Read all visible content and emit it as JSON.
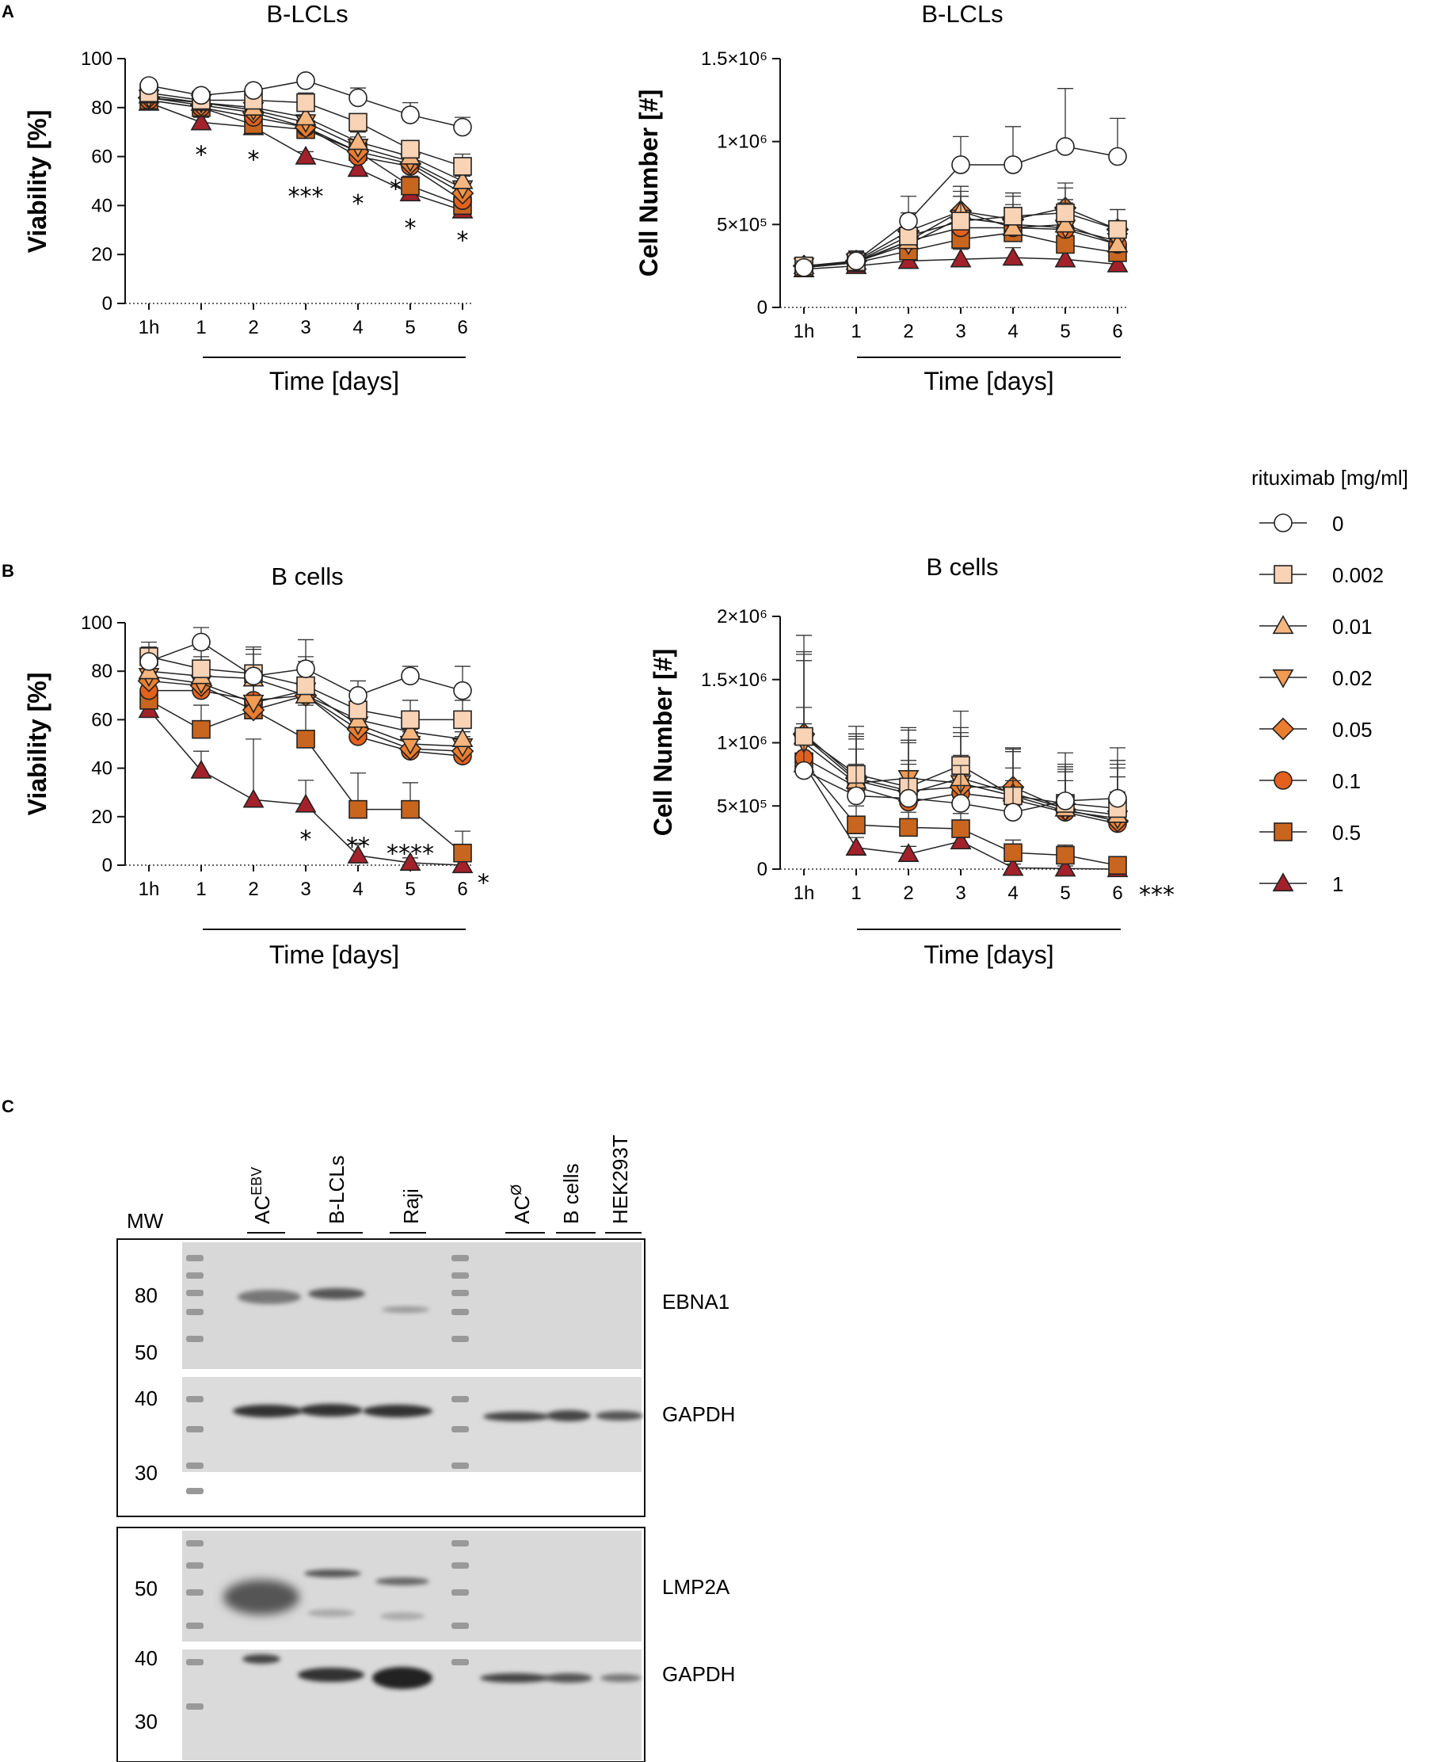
{
  "colors": {
    "0": "#ffffff",
    "0.002": "#f9d3b5",
    "0.01": "#f6b680",
    "0.02": "#f19a52",
    "0.05": "#ea7d2e",
    "0.1": "#e3611d",
    "0.5": "#c8651f",
    "1": "#a3212a"
  },
  "legend": {
    "title": "rituximab [mg/ml]",
    "entries": [
      {
        "label": "0",
        "marker": "circle",
        "key": "0"
      },
      {
        "label": "0.002",
        "marker": "square",
        "key": "0.002"
      },
      {
        "label": "0.01",
        "marker": "triangle-up",
        "key": "0.01"
      },
      {
        "label": "0.02",
        "marker": "triangle-down",
        "key": "0.02"
      },
      {
        "label": "0.05",
        "marker": "diamond",
        "key": "0.05"
      },
      {
        "label": "0.1",
        "marker": "circle",
        "key": "0.1"
      },
      {
        "label": "0.5",
        "marker": "square",
        "key": "0.5"
      },
      {
        "label": "1",
        "marker": "triangle-up",
        "key": "1"
      }
    ]
  },
  "chart_data": [
    {
      "panel": "A",
      "type": "line",
      "title": "B-LCLs",
      "ylabel": "Viability [%]",
      "xlabel": "Time [days]",
      "categories": [
        "1h",
        "1",
        "2",
        "3",
        "4",
        "5",
        "6"
      ],
      "ylim": [
        0,
        100
      ],
      "yticks": [
        {
          "v": 0,
          "label": "0"
        },
        {
          "v": 20,
          "label": "20"
        },
        {
          "v": 40,
          "label": "40"
        },
        {
          "v": 60,
          "label": "60"
        },
        {
          "v": 80,
          "label": "80"
        },
        {
          "v": 100,
          "label": "100"
        }
      ],
      "series": [
        {
          "name": "0",
          "marker": "circle",
          "key": "0",
          "values": [
            89,
            85,
            87,
            91,
            84,
            77,
            72
          ],
          "errors": [
            2,
            2,
            2,
            2,
            4,
            5,
            4
          ]
        },
        {
          "name": "0.002",
          "marker": "square",
          "key": "0.002",
          "values": [
            86,
            83,
            83,
            82,
            74,
            63,
            56
          ],
          "errors": [
            2,
            2,
            2,
            4,
            3,
            3,
            5
          ]
        },
        {
          "name": "0.01",
          "marker": "triangle-up",
          "key": "0.01",
          "values": [
            85,
            82,
            80,
            76,
            66,
            60,
            50
          ],
          "errors": [
            2,
            2,
            3,
            4,
            4,
            4,
            5
          ]
        },
        {
          "name": "0.02",
          "marker": "triangle-down",
          "key": "0.02",
          "values": [
            84,
            82,
            79,
            74,
            64,
            58,
            47
          ],
          "errors": [
            2,
            2,
            3,
            3,
            4,
            4,
            5
          ]
        },
        {
          "name": "0.05",
          "marker": "diamond",
          "key": "0.05",
          "values": [
            84,
            81,
            78,
            72,
            62,
            57,
            45
          ],
          "errors": [
            2,
            2,
            3,
            3,
            4,
            4,
            5
          ]
        },
        {
          "name": "0.1",
          "marker": "circle",
          "key": "0.1",
          "values": [
            83,
            80,
            76,
            72,
            60,
            56,
            42
          ],
          "errors": [
            2,
            2,
            3,
            3,
            4,
            4,
            5
          ]
        },
        {
          "name": "0.5",
          "marker": "square",
          "key": "0.5",
          "values": [
            83,
            80,
            73,
            71,
            62,
            48,
            40
          ],
          "errors": [
            2,
            2,
            3,
            3,
            4,
            4,
            5
          ]
        },
        {
          "name": "1",
          "marker": "triangle-up",
          "key": "1",
          "values": [
            82,
            74,
            72,
            60,
            55,
            45,
            38
          ],
          "errors": [
            2,
            2,
            3,
            2,
            4,
            4,
            3
          ]
        }
      ],
      "annotations": [
        {
          "cat": 1,
          "y": 62,
          "text": "*"
        },
        {
          "cat": 2,
          "y": 60,
          "text": "*"
        },
        {
          "cat": 3,
          "y": 45,
          "text": "***"
        },
        {
          "cat": 4,
          "y": 42,
          "text": "*"
        },
        {
          "cat": 4.72,
          "y": 48,
          "text": "*"
        },
        {
          "cat": 5,
          "y": 32,
          "text": "*"
        },
        {
          "cat": 6,
          "y": 27,
          "text": "*"
        }
      ]
    },
    {
      "panel": "A",
      "type": "line",
      "title": "B-LCLs",
      "ylabel": "Cell  Number [#]",
      "xlabel": "Time [days]",
      "categories": [
        "1h",
        "1",
        "2",
        "3",
        "4",
        "5",
        "6"
      ],
      "ylim": [
        0,
        1500000
      ],
      "yticks": [
        {
          "v": 0,
          "label": "0"
        },
        {
          "v": 500000,
          "label": "5×10⁵"
        },
        {
          "v": 1000000,
          "label": "1×10⁶"
        },
        {
          "v": 1500000,
          "label": "1.5×10⁶"
        }
      ],
      "series": [
        {
          "name": "0",
          "marker": "circle",
          "key": "0",
          "values": [
            240000,
            280000,
            520000,
            860000,
            860000,
            970000,
            910000
          ],
          "errors": [
            40000,
            60000,
            150000,
            170000,
            230000,
            350000,
            230000
          ]
        },
        {
          "name": "0.002",
          "marker": "square",
          "key": "0.002",
          "values": [
            250000,
            275000,
            430000,
            520000,
            550000,
            570000,
            470000
          ],
          "errors": [
            40000,
            60000,
            120000,
            150000,
            140000,
            150000,
            120000
          ]
        },
        {
          "name": "0.01",
          "marker": "triangle-up",
          "key": "0.01",
          "values": [
            250000,
            275000,
            400000,
            580000,
            480000,
            500000,
            380000
          ],
          "errors": [
            40000,
            60000,
            110000,
            120000,
            120000,
            150000,
            110000
          ]
        },
        {
          "name": "0.02",
          "marker": "triangle-down",
          "key": "0.02",
          "values": [
            250000,
            275000,
            380000,
            540000,
            500000,
            480000,
            400000
          ],
          "errors": [
            40000,
            60000,
            110000,
            130000,
            120000,
            150000,
            110000
          ]
        },
        {
          "name": "0.05",
          "marker": "diamond",
          "key": "0.05",
          "values": [
            250000,
            280000,
            460000,
            580000,
            530000,
            600000,
            470000
          ],
          "errors": [
            40000,
            60000,
            110000,
            150000,
            140000,
            150000,
            120000
          ]
        },
        {
          "name": "0.1",
          "marker": "circle",
          "key": "0.1",
          "values": [
            240000,
            270000,
            400000,
            480000,
            480000,
            470000,
            380000
          ],
          "errors": [
            40000,
            60000,
            110000,
            120000,
            120000,
            130000,
            110000
          ]
        },
        {
          "name": "0.5",
          "marker": "square",
          "key": "0.5",
          "values": [
            240000,
            270000,
            340000,
            410000,
            450000,
            380000,
            330000
          ],
          "errors": [
            40000,
            60000,
            80000,
            100000,
            120000,
            120000,
            100000
          ]
        },
        {
          "name": "1",
          "marker": "triangle-up",
          "key": "1",
          "values": [
            230000,
            250000,
            280000,
            290000,
            300000,
            290000,
            260000
          ],
          "errors": [
            40000,
            40000,
            60000,
            60000,
            60000,
            70000,
            60000
          ]
        }
      ],
      "annotations": []
    },
    {
      "panel": "B",
      "type": "line",
      "title": "B cells",
      "ylabel": "Viability [%]",
      "xlabel": "Time [days]",
      "categories": [
        "1h",
        "1",
        "2",
        "3",
        "4",
        "5",
        "6"
      ],
      "ylim": [
        0,
        100
      ],
      "yticks": [
        {
          "v": 0,
          "label": "0"
        },
        {
          "v": 20,
          "label": "20"
        },
        {
          "v": 40,
          "label": "40"
        },
        {
          "v": 60,
          "label": "60"
        },
        {
          "v": 80,
          "label": "80"
        },
        {
          "v": 100,
          "label": "100"
        }
      ],
      "series": [
        {
          "name": "0",
          "marker": "circle",
          "key": "0",
          "values": [
            84,
            92,
            78,
            81,
            70,
            78,
            72
          ],
          "errors": [
            6,
            6,
            12,
            12,
            6,
            4,
            10
          ]
        },
        {
          "name": "0.002",
          "marker": "square",
          "key": "0.002",
          "values": [
            86,
            81,
            79,
            74,
            64,
            60,
            60
          ],
          "errors": [
            6,
            8,
            10,
            12,
            8,
            8,
            8
          ]
        },
        {
          "name": "0.01",
          "marker": "triangle-up",
          "key": "0.01",
          "values": [
            80,
            78,
            77,
            70,
            60,
            55,
            52
          ],
          "errors": [
            6,
            8,
            10,
            12,
            8,
            8,
            8
          ]
        },
        {
          "name": "0.02",
          "marker": "triangle-down",
          "key": "0.02",
          "values": [
            78,
            75,
            67,
            72,
            58,
            50,
            49
          ],
          "errors": [
            6,
            8,
            10,
            12,
            8,
            8,
            8
          ]
        },
        {
          "name": "0.05",
          "marker": "diamond",
          "key": "0.05",
          "values": [
            76,
            74,
            64,
            70,
            56,
            48,
            47
          ],
          "errors": [
            6,
            8,
            10,
            12,
            8,
            8,
            8
          ]
        },
        {
          "name": "0.1",
          "marker": "circle",
          "key": "0.1",
          "values": [
            72,
            72,
            68,
            70,
            53,
            47,
            45
          ],
          "errors": [
            6,
            8,
            10,
            12,
            8,
            8,
            8
          ]
        },
        {
          "name": "0.5",
          "marker": "square",
          "key": "0.5",
          "values": [
            68,
            56,
            64,
            52,
            23,
            23,
            5
          ],
          "errors": [
            6,
            10,
            14,
            14,
            15,
            11,
            9
          ]
        },
        {
          "name": "1",
          "marker": "triangle-up",
          "key": "1",
          "values": [
            64,
            39,
            27,
            25,
            4,
            1,
            0
          ],
          "errors": [
            6,
            8,
            25,
            10,
            5,
            2,
            2
          ]
        }
      ],
      "annotations": [
        {
          "cat": 3,
          "y": 12,
          "text": "*"
        },
        {
          "cat": 4,
          "y": 9,
          "text": "**"
        },
        {
          "cat": 5,
          "y": 6,
          "text": "****"
        },
        {
          "cat": 6.4,
          "y": -6,
          "text": "*"
        }
      ]
    },
    {
      "panel": "B",
      "type": "line",
      "title": "B cells",
      "ylabel": "Cell  Number [#]",
      "xlabel": "Time [days]",
      "categories": [
        "1h",
        "1",
        "2",
        "3",
        "4",
        "5",
        "6"
      ],
      "ylim": [
        0,
        2000000
      ],
      "yticks": [
        {
          "v": 0,
          "label": "0"
        },
        {
          "v": 500000,
          "label": "5×10⁵"
        },
        {
          "v": 1000000,
          "label": "1×10⁶"
        },
        {
          "v": 1500000,
          "label": "1.5×10⁶"
        },
        {
          "v": 2000000,
          "label": "2×10⁶"
        }
      ],
      "series": [
        {
          "name": "0",
          "marker": "circle",
          "key": "0",
          "values": [
            780000,
            580000,
            560000,
            520000,
            450000,
            540000,
            560000
          ],
          "errors": [
            200000,
            250000,
            300000,
            300000,
            250000,
            250000,
            300000
          ]
        },
        {
          "name": "0.002",
          "marker": "square",
          "key": "0.002",
          "values": [
            1050000,
            750000,
            650000,
            820000,
            580000,
            520000,
            480000
          ],
          "errors": [
            800000,
            380000,
            450000,
            430000,
            380000,
            400000,
            480000
          ]
        },
        {
          "name": "0.01",
          "marker": "triangle-up",
          "key": "0.01",
          "values": [
            1050000,
            700000,
            600000,
            720000,
            600000,
            480000,
            430000
          ],
          "errors": [
            650000,
            350000,
            400000,
            400000,
            350000,
            350000,
            400000
          ]
        },
        {
          "name": "0.02",
          "marker": "triangle-down",
          "key": "0.02",
          "values": [
            1000000,
            680000,
            720000,
            680000,
            580000,
            460000,
            400000
          ],
          "errors": [
            650000,
            350000,
            400000,
            400000,
            350000,
            350000,
            400000
          ]
        },
        {
          "name": "0.05",
          "marker": "diamond",
          "key": "0.05",
          "values": [
            1070000,
            720000,
            620000,
            650000,
            650000,
            470000,
            380000
          ],
          "errors": [
            650000,
            350000,
            400000,
            400000,
            300000,
            300000,
            350000
          ]
        },
        {
          "name": "0.1",
          "marker": "circle",
          "key": "0.1",
          "values": [
            880000,
            650000,
            530000,
            600000,
            550000,
            450000,
            360000
          ],
          "errors": [
            400000,
            300000,
            300000,
            300000,
            250000,
            250000,
            250000
          ]
        },
        {
          "name": "0.5",
          "marker": "square",
          "key": "0.5",
          "values": [
            850000,
            350000,
            330000,
            320000,
            130000,
            110000,
            30000
          ],
          "errors": [
            300000,
            150000,
            120000,
            120000,
            100000,
            80000,
            40000
          ]
        },
        {
          "name": "1",
          "marker": "triangle-up",
          "key": "1",
          "values": [
            830000,
            170000,
            120000,
            220000,
            10000,
            5000,
            0
          ],
          "errors": [
            200000,
            80000,
            60000,
            80000,
            30000,
            20000,
            10000
          ]
        }
      ],
      "annotations": [
        {
          "cat": 6.75,
          "y": -180000,
          "text": "***"
        }
      ]
    }
  ],
  "panels": {
    "a_letter": "A",
    "b_letter": "B",
    "c_letter": "C"
  },
  "blot": {
    "mw_header": "MW",
    "lanes": [
      {
        "label": "AC",
        "sup": "EBV"
      },
      {
        "label": "B-LCLs",
        "sup": ""
      },
      {
        "label": "Raji",
        "sup": ""
      },
      {
        "label": "AC",
        "sup": "Ø"
      },
      {
        "label": "B cells",
        "sup": ""
      },
      {
        "label": "HEK293T",
        "sup": ""
      }
    ],
    "top_panel_mw": [
      "80",
      "50",
      "40",
      "30"
    ],
    "bottom_panel_mw": [
      "50",
      "40",
      "30"
    ],
    "proteins": [
      "EBNA1",
      "GAPDH",
      "LMP2A",
      "GAPDH"
    ]
  }
}
